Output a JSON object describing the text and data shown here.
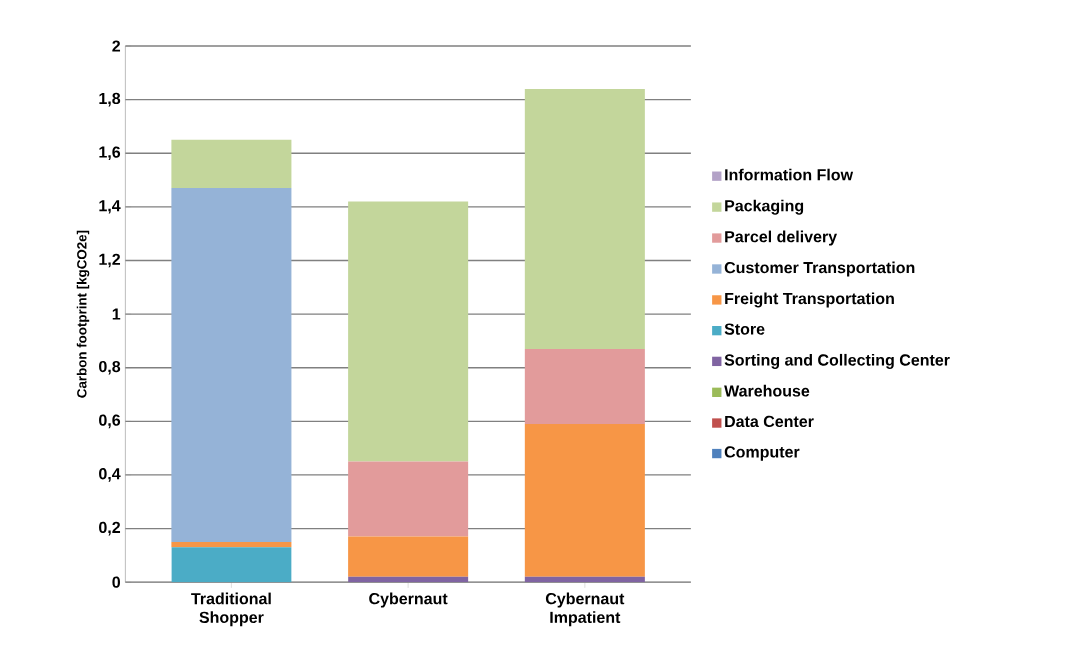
{
  "chart_data": {
    "type": "bar",
    "stacked": true,
    "ylabel": "Carbon footprint [kgCO2e]",
    "categories": [
      "Traditional Shopper",
      "Cybernaut",
      "Cybernaut Impatient"
    ],
    "series": [
      {
        "name": "Computer",
        "color": "#4f81bd",
        "values": [
          0,
          0,
          0
        ]
      },
      {
        "name": "Data Center",
        "color": "#c0504d",
        "values": [
          0,
          0,
          0
        ]
      },
      {
        "name": "Warehouse",
        "color": "#9bbb59",
        "values": [
          0,
          0,
          0
        ]
      },
      {
        "name": "Sorting and Collecting Center",
        "color": "#8064a2",
        "values": [
          0,
          0.02,
          0.02
        ]
      },
      {
        "name": "Store",
        "color": "#4bacc6",
        "values": [
          0.13,
          0,
          0
        ]
      },
      {
        "name": "Freight Transportation",
        "color": "#f79646",
        "values": [
          0.02,
          0.15,
          0.57
        ]
      },
      {
        "name": "Customer Transportation",
        "color": "#95b3d7",
        "values": [
          1.32,
          0,
          0
        ]
      },
      {
        "name": "Parcel delivery",
        "color": "#e29b9b",
        "values": [
          0,
          0.28,
          0.28
        ]
      },
      {
        "name": "Packaging",
        "color": "#c3d69b",
        "values": [
          0.18,
          0.97,
          0.97
        ]
      },
      {
        "name": "Information Flow",
        "color": "#b3a2c7",
        "values": [
          0,
          0,
          0
        ]
      }
    ],
    "ylim": [
      0,
      2
    ],
    "yticks": [
      0,
      {
        "value": 0.2,
        "label": "0,2"
      },
      {
        "value": 0.4,
        "label": "0,4"
      },
      {
        "value": 0.6,
        "label": "0,6"
      },
      {
        "value": 0.8,
        "label": "0,8"
      },
      1,
      {
        "value": 1.2,
        "label": "1,2"
      },
      {
        "value": 1.4,
        "label": "1,4"
      },
      {
        "value": 1.6,
        "label": "1,6"
      },
      {
        "value": 1.8,
        "label": "1,8"
      },
      2
    ],
    "grid": "y",
    "legend": "right"
  }
}
